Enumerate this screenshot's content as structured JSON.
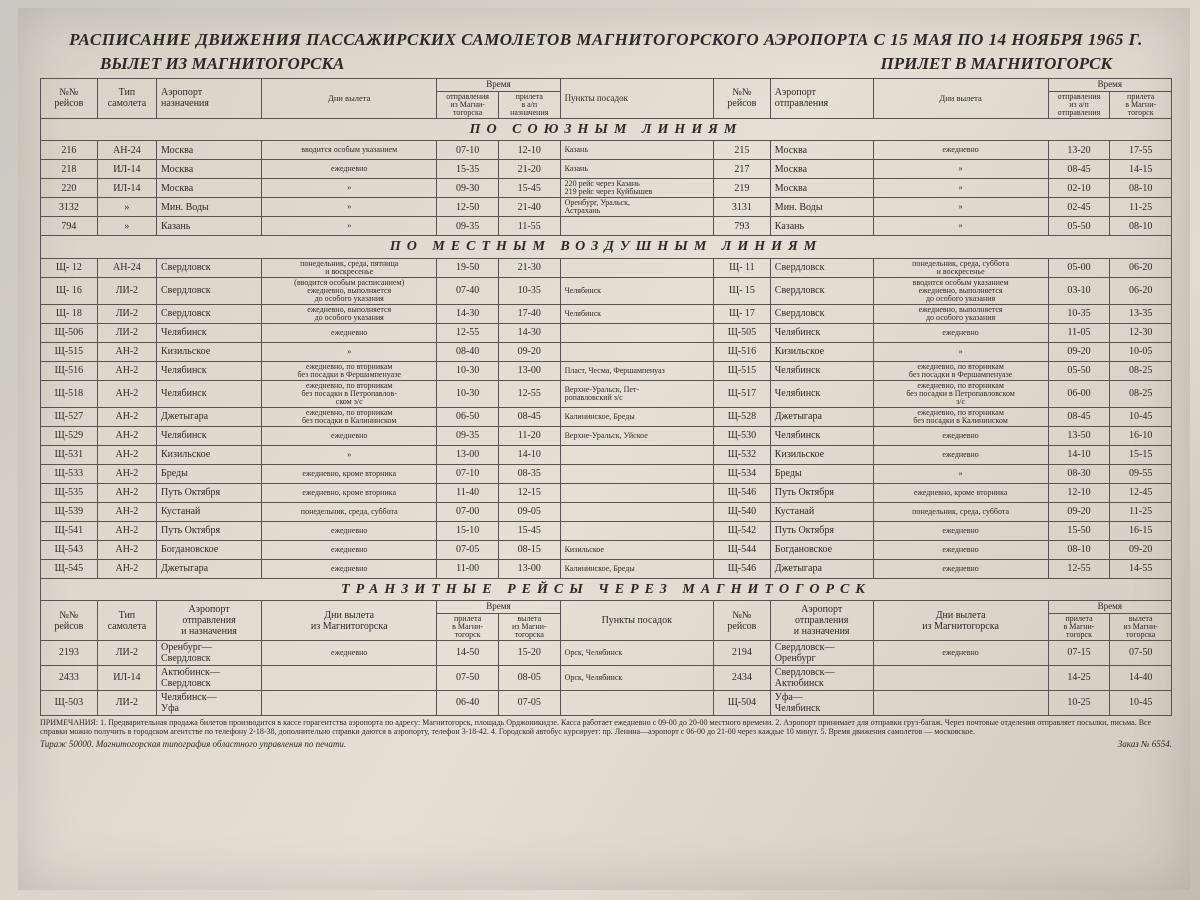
{
  "title": "РАСПИСАНИЕ ДВИЖЕНИЯ ПАССАЖИРСКИХ САМОЛЕТОВ МАГНИТОГОРСКОГО АЭРОПОРТА С 15 МАЯ ПО 14 НОЯБРЯ 1965 Г.",
  "subtitle_left": "ВЫЛЕТ ИЗ МАГНИТОГОРСКА",
  "subtitle_right": "ПРИЛЕТ В МАГНИТОГОРСК",
  "headers": {
    "flight": "№№\nрейсов",
    "type": "Тип\nсамолета",
    "dest": "Аэропорт\nназначения",
    "days": "Дни вылета",
    "time": "Время",
    "dep": "отправления\nиз Магни-\nтогорска",
    "arr": "прилета\nв а/п\nназначения",
    "stops": "Пункты посадок",
    "orig": "Аэропорт\nотправления",
    "dep2": "отправления\nиз а/п\nотправления",
    "arr2": "прилета\nв Магни-\nтогорск"
  },
  "sec1": "ПО СОЮЗНЫМ ЛИНИЯМ",
  "sec2": "ПО МЕСТНЫМ ВОЗДУШНЫМ ЛИНИЯМ",
  "sec3": "ТРАНЗИТНЫЕ РЕЙСЫ ЧЕРЕЗ МАГНИТОГОРСК",
  "union": [
    {
      "f": "216",
      "t": "АН-24",
      "p": "Москва",
      "d": "вводится особым указанием",
      "t1": "07-10",
      "t2": "12-10",
      "s": "Казань",
      "f2": "215",
      "p2": "Москва",
      "d2": "ежедневно",
      "t3": "13-20",
      "t4": "17-55"
    },
    {
      "f": "218",
      "t": "ИЛ-14",
      "p": "Москва",
      "d": "ежедневно",
      "t1": "15-35",
      "t2": "21-20",
      "s": "Казань",
      "f2": "217",
      "p2": "Москва",
      "d2": "»",
      "t3": "08-45",
      "t4": "14-15"
    },
    {
      "f": "220",
      "t": "ИЛ-14",
      "p": "Москва",
      "d": "»",
      "t1": "09-30",
      "t2": "15-45",
      "s": "220 рейс через Казань\n219 рейс через Куйбышев",
      "f2": "219",
      "p2": "Москва",
      "d2": "»",
      "t3": "02-10",
      "t4": "08-10"
    },
    {
      "f": "3132",
      "t": "»",
      "p": "Мин. Воды",
      "d": "»",
      "t1": "12-50",
      "t2": "21-40",
      "s": "Оренбург, Уральск,\nАстрахань",
      "f2": "3131",
      "p2": "Мин. Воды",
      "d2": "»",
      "t3": "02-45",
      "t4": "11-25"
    },
    {
      "f": "794",
      "t": "»",
      "p": "Казань",
      "d": "»",
      "t1": "09-35",
      "t2": "11-55",
      "s": "",
      "f2": "793",
      "p2": "Казань",
      "d2": "»",
      "t3": "05-50",
      "t4": "08-10"
    }
  ],
  "local": [
    {
      "f": "Щ- 12",
      "t": "АН-24",
      "p": "Свердловск",
      "d": "понедельник, среда, пятница\nи воскресенье",
      "t1": "19-50",
      "t2": "21-30",
      "s": "",
      "f2": "Щ- 11",
      "p2": "Свердловск",
      "d2": "понедельник, среда, суббота\nи воскресенье",
      "t3": "05-00",
      "t4": "06-20"
    },
    {
      "f": "Щ- 16",
      "t": "ЛИ-2",
      "p": "Свердловск",
      "d": "(вводится особым расписанием)\nежедневно, выполняется\nдо особого указания",
      "t1": "07-40",
      "t2": "10-35",
      "s": "Челябинск",
      "f2": "Щ- 15",
      "p2": "Свердловск",
      "d2": "вводится особым указанием\nежедневно, выполняется\nдо особого указания",
      "t3": "03-10",
      "t4": "06-20"
    },
    {
      "f": "Щ- 18",
      "t": "ЛИ-2",
      "p": "Свердловск",
      "d": "ежедневно, выполняется\nдо особого указания",
      "t1": "14-30",
      "t2": "17-40",
      "s": "Челябинск",
      "f2": "Щ- 17",
      "p2": "Свердловск",
      "d2": "ежедневно, выполняется\nдо особого указания",
      "t3": "10-35",
      "t4": "13-35"
    },
    {
      "f": "Щ-506",
      "t": "ЛИ-2",
      "p": "Челябинск",
      "d": "ежедневно",
      "t1": "12-55",
      "t2": "14-30",
      "s": "",
      "f2": "Щ-505",
      "p2": "Челябинск",
      "d2": "ежедневно",
      "t3": "11-05",
      "t4": "12-30"
    },
    {
      "f": "Щ-515",
      "t": "АН-2",
      "p": "Кизильское",
      "d": "»",
      "t1": "08-40",
      "t2": "09-20",
      "s": "",
      "f2": "Щ-516",
      "p2": "Кизильское",
      "d2": "»",
      "t3": "09-20",
      "t4": "10-05"
    },
    {
      "f": "Щ-516",
      "t": "АН-2",
      "p": "Челябинск",
      "d": "ежедневно, по вторникам\nбез посадки в Фершампенуазе",
      "t1": "10-30",
      "t2": "13-00",
      "s": "Пласт, Чесма, Фершампенуаз",
      "f2": "Щ-515",
      "p2": "Челябинск",
      "d2": "ежедневно, по вторникам\nбез посадки в Фершампенуазе",
      "t3": "05-50",
      "t4": "08-25"
    },
    {
      "f": "Щ-518",
      "t": "АН-2",
      "p": "Челябинск",
      "d": "ежедневно, по вторникам\nбез посадки в Петропавлов-\nском з/с",
      "t1": "10-30",
      "t2": "12-55",
      "s": "Верхне-Уральск, Пет-\nропавловский з/с",
      "f2": "Щ-517",
      "p2": "Челябинск",
      "d2": "ежедневно, по вторникам\nбез посадки в Петропавловском\nз/с",
      "t3": "06-00",
      "t4": "08-25"
    },
    {
      "f": "Щ-527",
      "t": "АН-2",
      "p": "Джетыгара",
      "d": "ежедневно, по вторникам\nбез посадки в Калининском",
      "t1": "06-50",
      "t2": "08-45",
      "s": "Калининское, Бреды",
      "f2": "Щ-528",
      "p2": "Джетыгара",
      "d2": "ежедневно, по вторникам\nбез посадки в Калининском",
      "t3": "08-45",
      "t4": "10-45"
    },
    {
      "f": "Щ-529",
      "t": "АН-2",
      "p": "Челябинск",
      "d": "ежедневно",
      "t1": "09-35",
      "t2": "11-20",
      "s": "Верхне-Уральск, Уйское",
      "f2": "Щ-530",
      "p2": "Челябинск",
      "d2": "ежедневно",
      "t3": "13-50",
      "t4": "16-10"
    },
    {
      "f": "Щ-531",
      "t": "АН-2",
      "p": "Кизильское",
      "d": "»",
      "t1": "13-00",
      "t2": "14-10",
      "s": "",
      "f2": "Щ-532",
      "p2": "Кизильское",
      "d2": "ежедневно",
      "t3": "14-10",
      "t4": "15-15"
    },
    {
      "f": "Щ-533",
      "t": "АН-2",
      "p": "Бреды",
      "d": "ежедневно, кроме вторника",
      "t1": "07-10",
      "t2": "08-35",
      "s": "",
      "f2": "Щ-534",
      "p2": "Бреды",
      "d2": "»",
      "t3": "08-30",
      "t4": "09-55"
    },
    {
      "f": "Щ-535",
      "t": "АН-2",
      "p": "Путь Октября",
      "d": "ежедневно, кроме вторника",
      "t1": "11-40",
      "t2": "12-15",
      "s": "",
      "f2": "Щ-546",
      "p2": "Путь Октября",
      "d2": "ежедневно, кроме вторника",
      "t3": "12-10",
      "t4": "12-45"
    },
    {
      "f": "Щ-539",
      "t": "АН-2",
      "p": "Кустанай",
      "d": "понедельник, среда, суббота",
      "t1": "07-00",
      "t2": "09-05",
      "s": "",
      "f2": "Щ-540",
      "p2": "Кустанай",
      "d2": "понедельник, среда, суббота",
      "t3": "09-20",
      "t4": "11-25"
    },
    {
      "f": "Щ-541",
      "t": "АН-2",
      "p": "Путь Октября",
      "d": "ежедневно",
      "t1": "15-10",
      "t2": "15-45",
      "s": "",
      "f2": "Щ-542",
      "p2": "Путь Октября",
      "d2": "ежедневно",
      "t3": "15-50",
      "t4": "16-15"
    },
    {
      "f": "Щ-543",
      "t": "АН-2",
      "p": "Богдановское",
      "d": "ежедневно",
      "t1": "07-05",
      "t2": "08-15",
      "s": "Кизильское",
      "f2": "Щ-544",
      "p2": "Богдановское",
      "d2": "ежедневно",
      "t3": "08-10",
      "t4": "09-20"
    },
    {
      "f": "Щ-545",
      "t": "АН-2",
      "p": "Джетыгара",
      "d": "ежедневно",
      "t1": "11-00",
      "t2": "13-00",
      "s": "Калининское, Бреды",
      "f2": "Щ-546",
      "p2": "Джетыгара",
      "d2": "ежедневно",
      "t3": "12-55",
      "t4": "14-55"
    }
  ],
  "transit_hdr": {
    "dest": "Аэропорт\nотправления\nи назначения",
    "days": "Дни вылета\nиз Магнитогорска",
    "arr_m": "прилета\nв Магни-\nтогорск",
    "dep_m": "вылета\nиз Магни-\nтогорска",
    "orig": "Аэропорт\nотправления\nи назначения",
    "days2": "Дни вылета\nиз Магнитогорска"
  },
  "transit": [
    {
      "f": "2193",
      "t": "ЛИ-2",
      "p": "Оренбург—\nСвердловск",
      "d": "ежедневно",
      "t1": "14-50",
      "t2": "15-20",
      "s": "Орск, Челябинск",
      "f2": "2194",
      "p2": "Свердловск—\nОренбург",
      "d2": "ежедневно",
      "t3": "07-15",
      "t4": "07-50"
    },
    {
      "f": "2433",
      "t": "ИЛ-14",
      "p": "Актюбинск—\nСвердловск",
      "d": "",
      "t1": "07-50",
      "t2": "08-05",
      "s": "Орск, Челябинск",
      "f2": "2434",
      "p2": "Свердловск—\nАктюбинск",
      "d2": "",
      "t3": "14-25",
      "t4": "14-40"
    },
    {
      "f": "Щ-503",
      "t": "ЛИ-2",
      "p": "Челябинск—\nУфа",
      "d": "",
      "t1": "06-40",
      "t2": "07-05",
      "s": "",
      "f2": "Щ-504",
      "p2": "Уфа—\nЧелябинск",
      "d2": "",
      "t3": "10-25",
      "t4": "10-45"
    }
  ],
  "footnote": "ПРИМЕЧАНИЯ: 1. Предварительная продажа билетов производится в кассе горагентства аэропорта по адресу: Магнитогорск, площадь Орджоникидзе. Касса работает ежедневно с 09-00 до 20-00 местного времени. 2. Аэропорт принимает для отправки груз-багаж. Через почтовые отделения отправляет посылки, письма. Все справки можно получить в городском агентстве по телефону 2-18-38, дополнительно справки даются в аэропорту, телефон 3-18-42. 4. Городской автобус курсирует: пр. Ленина—аэропорт с 06-00 до 21-00 через каждые 10 минут. 5. Время движения самолетов — московское.",
  "tirazh": "Тираж 50000. Магнитогорская типография областного управления по печати.",
  "zakaz": "Заказ № 6554."
}
